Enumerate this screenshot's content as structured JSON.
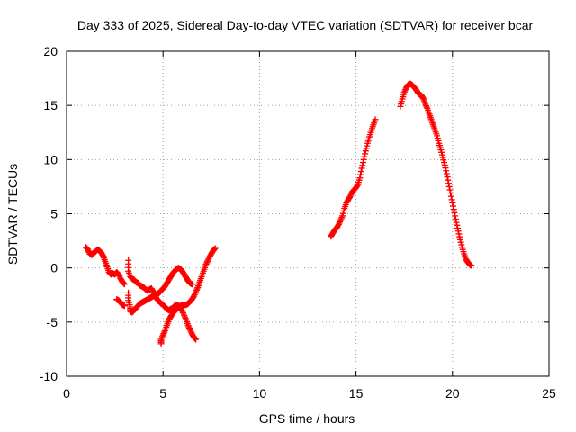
{
  "chart_data": {
    "type": "scatter",
    "title": "Day 333 of 2025, Sidereal Day-to-day VTEC variation (SDTVAR) for receiver bcar",
    "xlabel": "GPS time / hours",
    "ylabel": "SDTVAR / TECUs",
    "xlim": [
      0,
      25
    ],
    "ylim": [
      -10,
      20
    ],
    "xticks": [
      0,
      5,
      10,
      15,
      20,
      25
    ],
    "yticks": [
      -10,
      -5,
      0,
      5,
      10,
      15,
      20
    ],
    "grid": true,
    "marker": "plus",
    "color": "#ff0000",
    "series": [
      {
        "points": [
          [
            1.0,
            1.9
          ],
          [
            1.1,
            1.7
          ],
          [
            1.2,
            1.3
          ],
          [
            1.3,
            1.2
          ],
          [
            1.4,
            1.4
          ],
          [
            1.5,
            1.5
          ],
          [
            1.6,
            1.7
          ],
          [
            1.7,
            1.6
          ],
          [
            1.8,
            1.4
          ],
          [
            1.9,
            1.1
          ],
          [
            2.0,
            0.6
          ],
          [
            2.1,
            0.1
          ],
          [
            2.2,
            -0.4
          ],
          [
            2.3,
            -0.6
          ],
          [
            2.4,
            -0.5
          ],
          [
            2.5,
            -0.6
          ],
          [
            2.6,
            -0.4
          ],
          [
            2.7,
            -0.6
          ],
          [
            2.8,
            -1.0
          ],
          [
            2.9,
            -1.3
          ],
          [
            3.0,
            -1.5
          ]
        ]
      },
      {
        "points": [
          [
            2.6,
            -2.9
          ],
          [
            2.7,
            -3.0
          ],
          [
            2.8,
            -3.2
          ],
          [
            2.9,
            -3.4
          ],
          [
            3.0,
            -3.5
          ]
        ]
      },
      {
        "points": [
          [
            3.2,
            0.7
          ],
          [
            3.2,
            -0.3
          ],
          [
            3.3,
            -0.8
          ],
          [
            3.4,
            -1.0
          ],
          [
            3.5,
            -1.1
          ],
          [
            3.6,
            -1.3
          ],
          [
            3.7,
            -1.4
          ],
          [
            3.8,
            -1.6
          ],
          [
            3.9,
            -1.7
          ],
          [
            4.0,
            -1.8
          ],
          [
            4.1,
            -2.0
          ],
          [
            4.2,
            -2.1
          ],
          [
            4.3,
            -2.0
          ],
          [
            4.4,
            -1.9
          ],
          [
            4.5,
            -2.2
          ],
          [
            4.6,
            -2.6
          ],
          [
            4.7,
            -2.9
          ],
          [
            4.8,
            -3.1
          ],
          [
            4.9,
            -3.3
          ],
          [
            5.0,
            -3.4
          ],
          [
            5.1,
            -3.6
          ],
          [
            5.2,
            -3.8
          ],
          [
            5.3,
            -3.9
          ],
          [
            5.4,
            -3.8
          ],
          [
            5.5,
            -3.7
          ],
          [
            5.6,
            -3.5
          ],
          [
            5.7,
            -3.4
          ],
          [
            5.8,
            -3.5
          ],
          [
            5.9,
            -3.7
          ],
          [
            6.0,
            -4.0
          ],
          [
            6.1,
            -4.4
          ],
          [
            6.2,
            -4.8
          ],
          [
            6.3,
            -5.3
          ],
          [
            6.4,
            -5.7
          ],
          [
            6.5,
            -6.1
          ],
          [
            6.6,
            -6.4
          ],
          [
            6.7,
            -6.6
          ]
        ]
      },
      {
        "points": [
          [
            3.2,
            -2.3
          ],
          [
            3.2,
            -3.0
          ],
          [
            3.3,
            -3.6
          ],
          [
            3.3,
            -4.0
          ],
          [
            3.4,
            -4.1
          ],
          [
            3.5,
            -3.9
          ],
          [
            3.6,
            -3.7
          ],
          [
            3.7,
            -3.5
          ],
          [
            3.8,
            -3.3
          ],
          [
            3.9,
            -3.2
          ],
          [
            4.0,
            -3.1
          ],
          [
            4.1,
            -3.0
          ],
          [
            4.2,
            -2.9
          ],
          [
            4.3,
            -2.8
          ],
          [
            4.4,
            -2.7
          ],
          [
            4.5,
            -2.6
          ],
          [
            4.6,
            -2.5
          ],
          [
            4.7,
            -2.4
          ],
          [
            4.8,
            -2.3
          ],
          [
            4.9,
            -2.1
          ],
          [
            5.0,
            -1.9
          ],
          [
            5.1,
            -1.7
          ],
          [
            5.2,
            -1.4
          ],
          [
            5.3,
            -1.1
          ],
          [
            5.4,
            -0.8
          ],
          [
            5.5,
            -0.5
          ],
          [
            5.6,
            -0.3
          ],
          [
            5.7,
            -0.1
          ],
          [
            5.8,
            0.0
          ],
          [
            5.9,
            -0.1
          ],
          [
            6.0,
            -0.3
          ],
          [
            6.1,
            -0.6
          ],
          [
            6.2,
            -0.9
          ],
          [
            6.3,
            -1.2
          ],
          [
            6.4,
            -1.4
          ],
          [
            6.5,
            -1.5
          ]
        ]
      },
      {
        "points": [
          [
            4.9,
            -7.0
          ],
          [
            4.9,
            -6.6
          ],
          [
            5.0,
            -6.2
          ],
          [
            5.1,
            -5.8
          ],
          [
            5.2,
            -5.3
          ],
          [
            5.3,
            -4.8
          ],
          [
            5.4,
            -4.5
          ],
          [
            5.5,
            -4.2
          ],
          [
            5.6,
            -4.0
          ],
          [
            5.7,
            -3.8
          ],
          [
            5.8,
            -3.6
          ],
          [
            5.9,
            -3.5
          ],
          [
            6.0,
            -3.4
          ],
          [
            6.1,
            -3.4
          ],
          [
            6.2,
            -3.4
          ],
          [
            6.3,
            -3.3
          ],
          [
            6.4,
            -3.1
          ],
          [
            6.5,
            -2.9
          ],
          [
            6.6,
            -2.6
          ],
          [
            6.7,
            -2.2
          ],
          [
            6.8,
            -1.8
          ],
          [
            6.9,
            -1.3
          ],
          [
            7.0,
            -0.8
          ],
          [
            7.1,
            -0.3
          ],
          [
            7.2,
            0.2
          ],
          [
            7.3,
            0.6
          ],
          [
            7.4,
            1.0
          ],
          [
            7.5,
            1.3
          ],
          [
            7.6,
            1.6
          ],
          [
            7.7,
            1.8
          ]
        ]
      },
      {
        "points": [
          [
            13.7,
            2.9
          ],
          [
            13.8,
            3.2
          ],
          [
            13.9,
            3.5
          ],
          [
            14.0,
            3.7
          ],
          [
            14.1,
            4.0
          ],
          [
            14.2,
            4.4
          ],
          [
            14.3,
            4.8
          ],
          [
            14.4,
            5.5
          ],
          [
            14.5,
            6.0
          ],
          [
            14.6,
            6.3
          ],
          [
            14.7,
            6.6
          ],
          [
            14.8,
            7.0
          ],
          [
            14.9,
            7.2
          ],
          [
            15.0,
            7.4
          ],
          [
            15.1,
            7.7
          ],
          [
            15.2,
            8.3
          ],
          [
            15.3,
            9.2
          ],
          [
            15.4,
            10.0
          ],
          [
            15.5,
            10.8
          ],
          [
            15.6,
            11.5
          ],
          [
            15.7,
            12.1
          ],
          [
            15.8,
            12.7
          ],
          [
            15.9,
            13.2
          ],
          [
            16.0,
            13.7
          ]
        ]
      },
      {
        "points": [
          [
            17.3,
            14.9
          ],
          [
            17.4,
            15.6
          ],
          [
            17.5,
            16.2
          ],
          [
            17.6,
            16.6
          ],
          [
            17.7,
            16.9
          ],
          [
            17.8,
            17.0
          ],
          [
            17.9,
            16.9
          ],
          [
            18.0,
            16.7
          ],
          [
            18.1,
            16.5
          ],
          [
            18.2,
            16.2
          ],
          [
            18.3,
            16.0
          ],
          [
            18.4,
            15.9
          ],
          [
            18.5,
            15.6
          ],
          [
            18.6,
            15.1
          ],
          [
            18.7,
            14.7
          ],
          [
            18.8,
            14.2
          ],
          [
            18.9,
            13.7
          ],
          [
            19.0,
            13.2
          ],
          [
            19.1,
            12.7
          ],
          [
            19.2,
            12.2
          ],
          [
            19.3,
            11.5
          ],
          [
            19.4,
            10.9
          ],
          [
            19.5,
            10.2
          ],
          [
            19.6,
            9.5
          ],
          [
            19.7,
            8.7
          ],
          [
            19.8,
            7.8
          ],
          [
            19.9,
            6.9
          ],
          [
            20.0,
            6.0
          ],
          [
            20.1,
            5.1
          ],
          [
            20.2,
            4.2
          ],
          [
            20.3,
            3.4
          ],
          [
            20.4,
            2.6
          ],
          [
            20.5,
            1.9
          ],
          [
            20.6,
            1.3
          ],
          [
            20.7,
            0.8
          ],
          [
            20.8,
            0.5
          ],
          [
            20.9,
            0.3
          ],
          [
            21.0,
            0.2
          ]
        ]
      }
    ]
  }
}
